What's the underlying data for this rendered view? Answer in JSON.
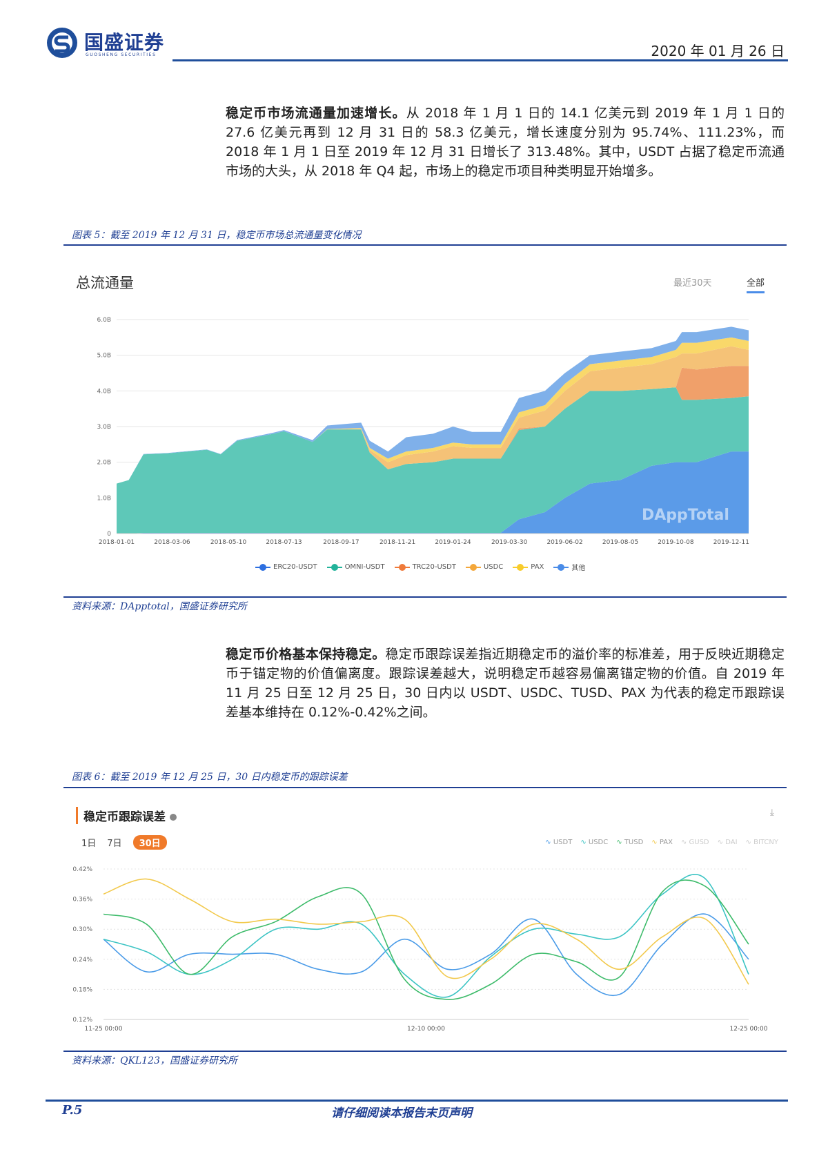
{
  "header": {
    "logo_cn": "国盛证券",
    "logo_en": "GUOSHENG SECURITIES",
    "date": "2020 年 01 月 26 日",
    "brand_color": "#1f3f93"
  },
  "para1": {
    "lead": "稳定币市场流通量加速增长。",
    "body": "从 2018 年 1 月 1 日的 14.1 亿美元到 2019 年 1 月 1 日的 27.6 亿美元再到 12 月 31 日的 58.3 亿美元，增长速度分别为 95.74%、111.23%，而 2018 年 1 月 1 日至 2019 年 12 月 31 日增长了 313.48%。其中，USDT 占据了稳定币流通市场的大头，从 2018 年 Q4 起，市场上的稳定币项目种类明显开始增多。"
  },
  "figure5": {
    "caption": "图表 5：截至 2019 年 12 月 31 日，稳定币市场总流通量变化情况",
    "source": "资料来源：DApptotal，国盛证券研究所",
    "title": "总流通量",
    "tabs": [
      "最近30天",
      "全部"
    ],
    "active_tab": "全部",
    "watermark": "DAppTotal"
  },
  "para2": {
    "lead": "稳定币价格基本保持稳定。",
    "body": "稳定币跟踪误差指近期稳定币的溢价率的标准差，用于反映近期稳定币于锚定物的价值偏离度。跟踪误差越大，说明稳定币越容易偏离锚定物的价值。自 2019 年 11 月 25 日至 12 月 25 日，30 日内以 USDT、USDC、TUSD、PAX 为代表的稳定币跟踪误差基本维持在 0.12%-0.42%之间。"
  },
  "figure6": {
    "caption": "图表 6：截至 2019 年 12 月 25 日，30 日内稳定币的跟踪误差",
    "source": "资料来源：QKL123，国盛证券研究所",
    "title": "稳定币跟踪误差",
    "ranges": [
      "1日",
      "7日",
      "30日"
    ],
    "active_range": "30日"
  },
  "footer": {
    "page": "P.5",
    "note": "请仔细阅读本报告末页声明"
  },
  "chart_data": [
    {
      "type": "area",
      "stacked": true,
      "title": "总流通量",
      "ylim": [
        0,
        6.0
      ],
      "yticks": [
        "0",
        "1.0B",
        "2.0B",
        "3.0B",
        "4.0B",
        "5.0B",
        "6.0B"
      ],
      "ytick_values": [
        0,
        1,
        2,
        3,
        4,
        5,
        6
      ],
      "xlim": [
        "2018-01-01",
        "2019-12-31"
      ],
      "xticks": [
        "2018-01-01",
        "2018-03-06",
        "2018-05-10",
        "2018-07-13",
        "2018-09-17",
        "2018-11-21",
        "2019-01-24",
        "2019-03-30",
        "2019-06-02",
        "2019-08-05",
        "2019-10-08",
        "2019-12-11"
      ],
      "grid": true,
      "legend": "bottom",
      "unit": "B USD",
      "x": [
        "2018-01-01",
        "2018-01-15",
        "2018-02-01",
        "2018-03-01",
        "2018-04-15",
        "2018-05-01",
        "2018-05-20",
        "2018-07-01",
        "2018-07-13",
        "2018-08-15",
        "2018-09-01",
        "2018-10-10",
        "2018-10-20",
        "2018-11-10",
        "2018-12-01",
        "2019-01-01",
        "2019-01-24",
        "2019-02-15",
        "2019-03-20",
        "2019-04-10",
        "2019-05-10",
        "2019-06-02",
        "2019-07-01",
        "2019-08-05",
        "2019-09-10",
        "2019-10-08",
        "2019-10-15",
        "2019-11-01",
        "2019-12-11",
        "2019-12-31"
      ],
      "series": [
        {
          "name": "ERC20-USDT",
          "color": "#5b9be8",
          "marker": "#2d6fe0",
          "values": [
            0,
            0,
            0.02,
            0.02,
            0.02,
            0.02,
            0.02,
            0.02,
            0.02,
            0.02,
            0.02,
            0.02,
            0.02,
            0.02,
            0.02,
            0.02,
            0.02,
            0.02,
            0.02,
            0.4,
            0.6,
            1.0,
            1.4,
            1.5,
            1.9,
            2.0,
            2.0,
            2.0,
            2.3,
            2.3
          ]
        },
        {
          "name": "OMNI-USDT",
          "color": "#5ec8b8",
          "marker": "#22b39a",
          "values": [
            1.4,
            1.5,
            2.2,
            2.23,
            2.33,
            2.2,
            2.58,
            2.78,
            2.85,
            2.55,
            2.9,
            2.9,
            2.25,
            1.78,
            1.93,
            1.98,
            2.08,
            2.08,
            2.08,
            2.5,
            2.4,
            2.5,
            2.6,
            2.5,
            2.15,
            2.1,
            1.75,
            1.75,
            1.5,
            1.55
          ]
        },
        {
          "name": "TRC20-USDT",
          "color": "#f0a06a",
          "marker": "#ef7a3a",
          "values": [
            0,
            0,
            0,
            0,
            0,
            0,
            0,
            0,
            0,
            0,
            0,
            0,
            0,
            0,
            0,
            0,
            0,
            0,
            0,
            0.05,
            0,
            0,
            0,
            0,
            0,
            0,
            0.9,
            0.85,
            0.9,
            0.85
          ]
        },
        {
          "name": "USDC",
          "color": "#f5c277",
          "marker": "#f4a73a",
          "values": [
            0,
            0,
            0,
            0,
            0,
            0,
            0,
            0,
            0,
            0,
            0,
            0.02,
            0.08,
            0.2,
            0.25,
            0.3,
            0.35,
            0.3,
            0.3,
            0.3,
            0.45,
            0.5,
            0.55,
            0.65,
            0.7,
            0.85,
            0.4,
            0.45,
            0.55,
            0.45
          ]
        },
        {
          "name": "PAX",
          "color": "#f9d86a",
          "marker": "#f8cc2c",
          "values": [
            0,
            0,
            0,
            0,
            0,
            0,
            0,
            0,
            0,
            0,
            0.01,
            0.02,
            0.05,
            0.1,
            0.1,
            0.1,
            0.1,
            0.1,
            0.1,
            0.15,
            0.15,
            0.2,
            0.2,
            0.2,
            0.2,
            0.2,
            0.3,
            0.3,
            0.25,
            0.25
          ]
        },
        {
          "name": "其他",
          "color": "#7fb0ea",
          "marker": "#4a8ce8",
          "values": [
            0,
            0,
            0.01,
            0.01,
            0.01,
            0.01,
            0.02,
            0.03,
            0.03,
            0.05,
            0.1,
            0.15,
            0.2,
            0.2,
            0.4,
            0.4,
            0.45,
            0.35,
            0.35,
            0.4,
            0.4,
            0.3,
            0.25,
            0.25,
            0.25,
            0.25,
            0.3,
            0.3,
            0.3,
            0.3
          ]
        }
      ]
    },
    {
      "type": "line",
      "title": "稳定币跟踪误差",
      "ylim": [
        0.12,
        0.42
      ],
      "yticks": [
        "0.12%",
        "0.18%",
        "0.24%",
        "0.30%",
        "0.36%",
        "0.42%"
      ],
      "ytick_values": [
        0.12,
        0.18,
        0.24,
        0.3,
        0.36,
        0.42
      ],
      "xlim": [
        "2019-11-25",
        "2019-12-25"
      ],
      "xticks": [
        "11-25 00:00",
        "12-10 00:00",
        "12-25 00:00"
      ],
      "grid": true,
      "legend": "top-right",
      "unit": "%",
      "x": [
        "2019-11-25",
        "2019-11-27",
        "2019-11-29",
        "2019-12-01",
        "2019-12-03",
        "2019-12-05",
        "2019-12-07",
        "2019-12-09",
        "2019-12-11",
        "2019-12-13",
        "2019-12-15",
        "2019-12-17",
        "2019-12-19",
        "2019-12-21",
        "2019-12-23",
        "2019-12-25"
      ],
      "series": [
        {
          "name": "USDT",
          "color": "#4a9be8",
          "active": true,
          "values": [
            0.28,
            0.215,
            0.25,
            0.25,
            0.25,
            0.22,
            0.215,
            0.28,
            0.22,
            0.25,
            0.32,
            0.21,
            0.17,
            0.27,
            0.33,
            0.24
          ]
        },
        {
          "name": "USDC",
          "color": "#3cc4c4",
          "active": true,
          "values": [
            0.28,
            0.255,
            0.21,
            0.24,
            0.3,
            0.3,
            0.31,
            0.21,
            0.165,
            0.245,
            0.3,
            0.29,
            0.285,
            0.37,
            0.4,
            0.21
          ]
        },
        {
          "name": "TUSD",
          "color": "#3dbb6a",
          "active": true,
          "values": [
            0.33,
            0.31,
            0.21,
            0.285,
            0.315,
            0.365,
            0.37,
            0.2,
            0.16,
            0.19,
            0.25,
            0.235,
            0.205,
            0.375,
            0.385,
            0.27
          ]
        },
        {
          "name": "PAX",
          "color": "#f2c94c",
          "active": true,
          "values": [
            0.37,
            0.4,
            0.36,
            0.315,
            0.32,
            0.31,
            0.315,
            0.32,
            0.205,
            0.24,
            0.31,
            0.28,
            0.22,
            0.285,
            0.32,
            0.19
          ]
        },
        {
          "name": "GUSD",
          "color": "#cccccc",
          "active": false
        },
        {
          "name": "DAI",
          "color": "#cccccc",
          "active": false
        },
        {
          "name": "BITCNY",
          "color": "#cccccc",
          "active": false
        }
      ]
    }
  ]
}
